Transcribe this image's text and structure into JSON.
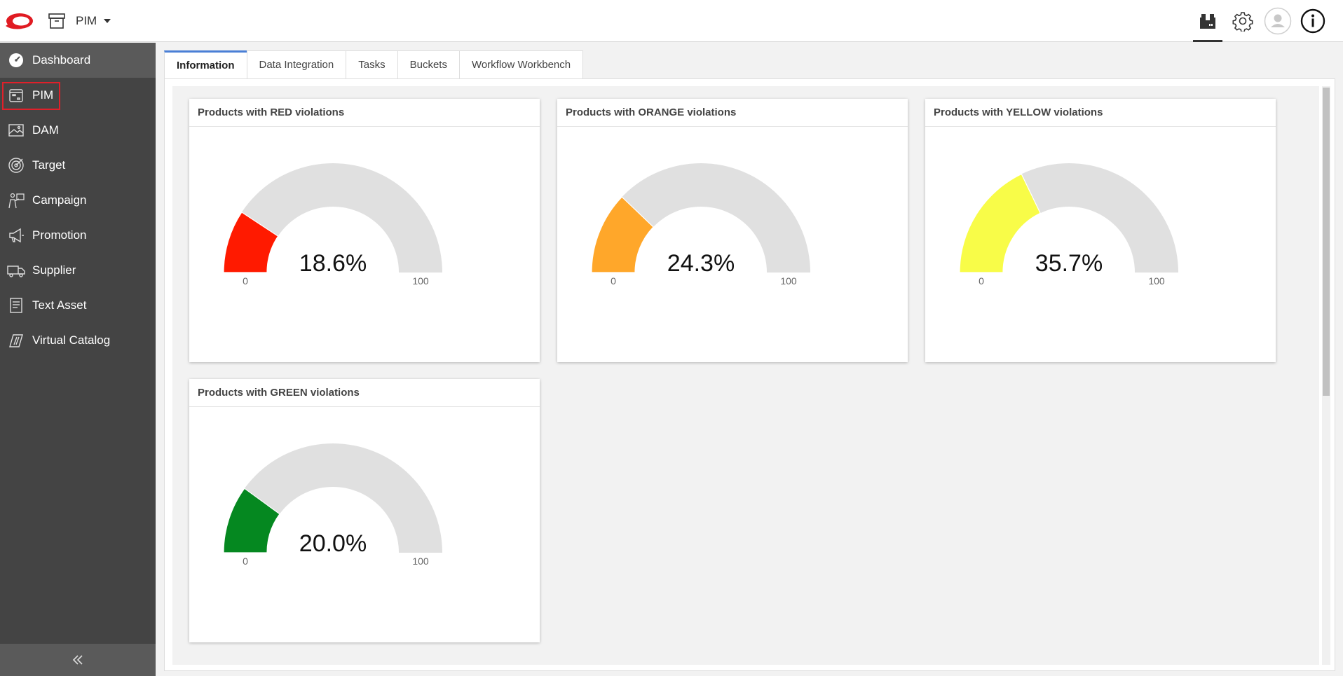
{
  "topbar": {
    "app_label": "PIM"
  },
  "sidebar": {
    "items": [
      {
        "label": "Dashboard",
        "icon": "dashboard-icon"
      },
      {
        "label": "PIM",
        "icon": "pim-icon"
      },
      {
        "label": "DAM",
        "icon": "image-icon"
      },
      {
        "label": "Target",
        "icon": "target-icon"
      },
      {
        "label": "Campaign",
        "icon": "campaign-icon"
      },
      {
        "label": "Promotion",
        "icon": "megaphone-icon"
      },
      {
        "label": "Supplier",
        "icon": "truck-icon"
      },
      {
        "label": "Text Asset",
        "icon": "document-icon"
      },
      {
        "label": "Virtual Catalog",
        "icon": "catalog-icon"
      }
    ],
    "collapse_icon": "double-chevron-left-icon"
  },
  "tabs": [
    "Information",
    "Data Integration",
    "Tasks",
    "Buckets",
    "Workflow Workbench"
  ],
  "chart_data": [
    {
      "type": "gauge",
      "title": "Products with RED violations",
      "value": 18.6,
      "value_label": "18.6%",
      "min": 0,
      "max": 100,
      "color": "#ff1a00"
    },
    {
      "type": "gauge",
      "title": "Products with ORANGE violations",
      "value": 24.3,
      "value_label": "24.3%",
      "min": 0,
      "max": 100,
      "color": "#ffa72a"
    },
    {
      "type": "gauge",
      "title": "Products with YELLOW violations",
      "value": 35.7,
      "value_label": "35.7%",
      "min": 0,
      "max": 100,
      "color": "#f8fc48"
    },
    {
      "type": "gauge",
      "title": "Products with GREEN violations",
      "value": 20.0,
      "value_label": "20.0%",
      "min": 0,
      "max": 100,
      "color": "#058820"
    }
  ],
  "colors": {
    "sidebar_bg": "#444444",
    "accent": "#4a7fd6",
    "highlight": "#e0202a",
    "gauge_track": "#e0e0e0"
  }
}
